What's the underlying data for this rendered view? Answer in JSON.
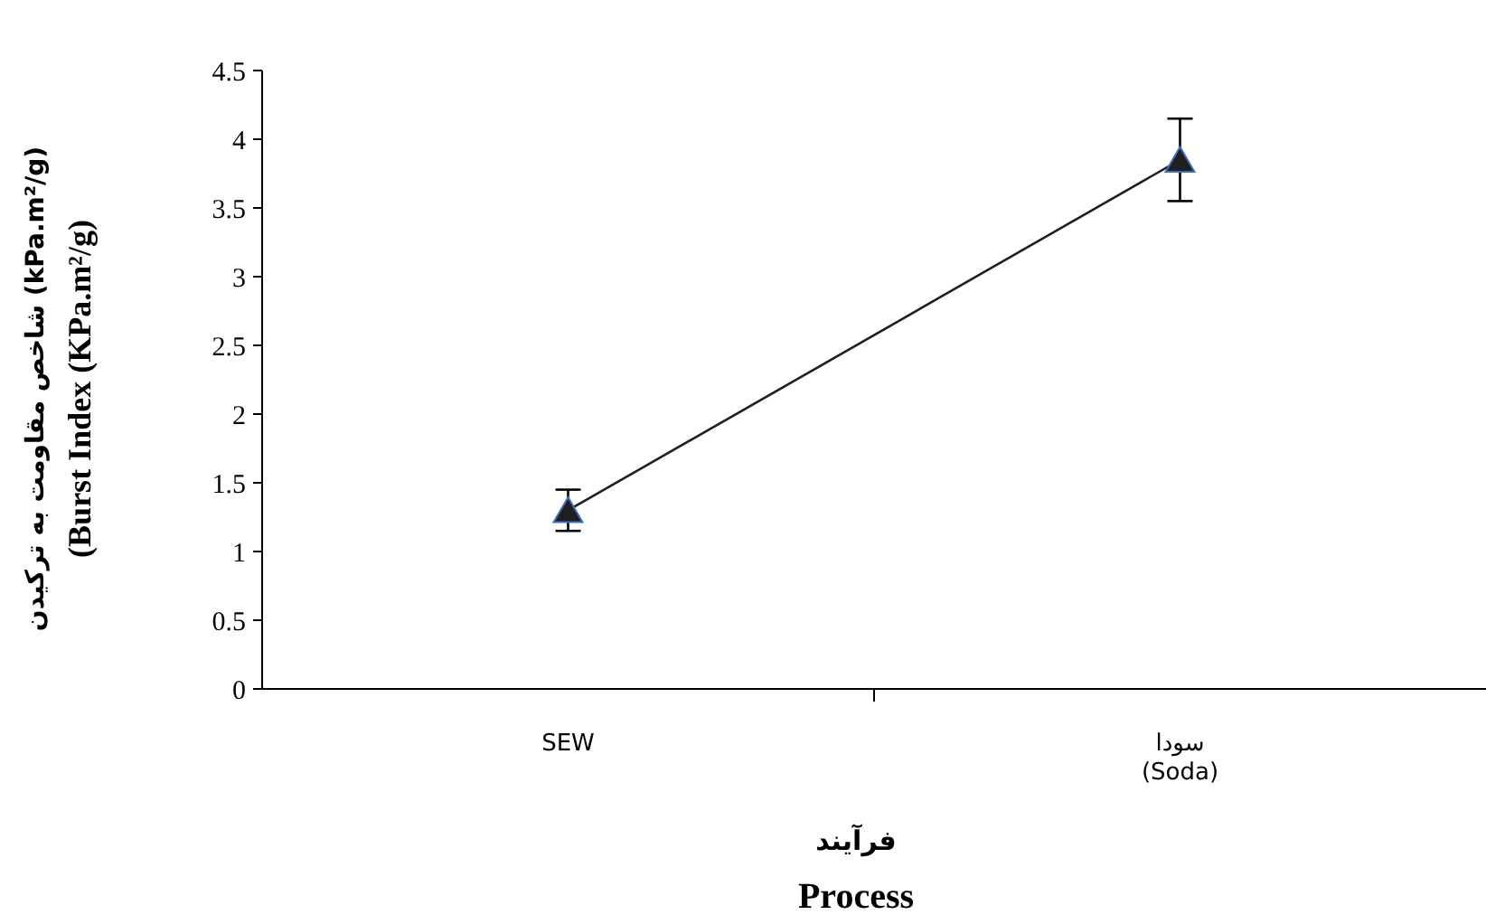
{
  "chart_data": {
    "type": "line",
    "categories": [
      "SEW",
      "سودا\n(Soda)"
    ],
    "series": [
      {
        "color": "#1f1f1f",
        "values": [
          1.3,
          3.85
        ],
        "errors": [
          0.15,
          0.3
        ]
      }
    ],
    "xlabel": "فرآیند\nProcess",
    "ylabel": "شاخص مقاومت به ترکیدن (kPa.m²/g)\n(Burst Index (KPa.m²/g)",
    "ylim": [
      0,
      4.5
    ],
    "yticks": [
      0,
      0.5,
      1,
      1.5,
      2,
      2.5,
      3,
      3.5,
      4,
      4.5
    ],
    "marker": "triangle",
    "line_style": "solid"
  }
}
